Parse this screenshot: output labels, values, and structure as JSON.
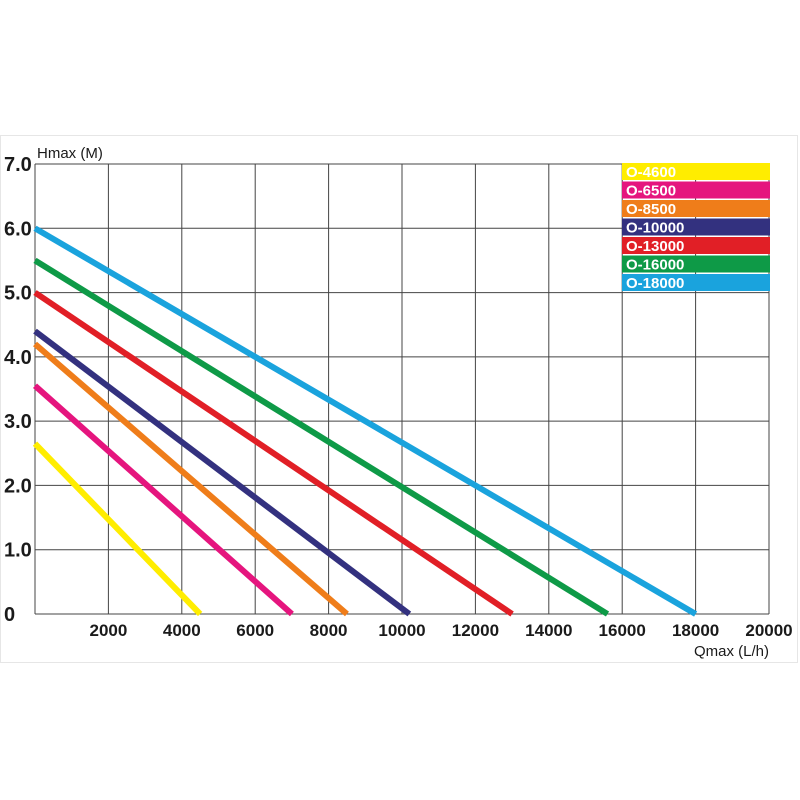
{
  "chart_data": {
    "type": "line",
    "title": "",
    "ylabel": "Hmax (M)",
    "xlabel": "Qmax (L/h)",
    "xlim": [
      0,
      20000
    ],
    "ylim": [
      0,
      7
    ],
    "grid": true,
    "legend_position": "top-right",
    "x_ticks": [
      {
        "value": 2000,
        "label": "2000"
      },
      {
        "value": 4000,
        "label": "4000"
      },
      {
        "value": 6000,
        "label": "6000"
      },
      {
        "value": 8000,
        "label": "8000"
      },
      {
        "value": 10000,
        "label": "10000"
      },
      {
        "value": 12000,
        "label": "12000"
      },
      {
        "value": 14000,
        "label": "14000"
      },
      {
        "value": 16000,
        "label": "16000"
      },
      {
        "value": 18000,
        "label": "18000"
      },
      {
        "value": 20000,
        "label": "20000"
      }
    ],
    "y_ticks": [
      {
        "value": 0,
        "label": "0"
      },
      {
        "value": 1,
        "label": "1.0"
      },
      {
        "value": 2,
        "label": "2.0"
      },
      {
        "value": 3,
        "label": "3.0"
      },
      {
        "value": 4,
        "label": "4.0"
      },
      {
        "value": 5,
        "label": "5.0"
      },
      {
        "value": 6,
        "label": "6.0"
      },
      {
        "value": 7,
        "label": "7.0"
      }
    ],
    "series": [
      {
        "name": "O-4600",
        "color": "#ffed00",
        "points": [
          [
            0,
            2.65
          ],
          [
            4500,
            0
          ]
        ]
      },
      {
        "name": "O-6500",
        "color": "#e5157e",
        "points": [
          [
            0,
            3.55
          ],
          [
            7000,
            0
          ]
        ]
      },
      {
        "name": "O-8500",
        "color": "#ef7d1a",
        "points": [
          [
            0,
            4.2
          ],
          [
            8500,
            0
          ]
        ]
      },
      {
        "name": "O-10000",
        "color": "#33317f",
        "points": [
          [
            0,
            4.4
          ],
          [
            10200,
            0
          ]
        ]
      },
      {
        "name": "O-13000",
        "color": "#e11f26",
        "points": [
          [
            0,
            5.0
          ],
          [
            13000,
            0
          ]
        ]
      },
      {
        "name": "O-16000",
        "color": "#0e9a47",
        "points": [
          [
            0,
            5.5
          ],
          [
            15600,
            0
          ]
        ]
      },
      {
        "name": "O-18000",
        "color": "#1aa3dd",
        "points": [
          [
            0,
            6.0
          ],
          [
            18000,
            0
          ]
        ]
      }
    ]
  }
}
